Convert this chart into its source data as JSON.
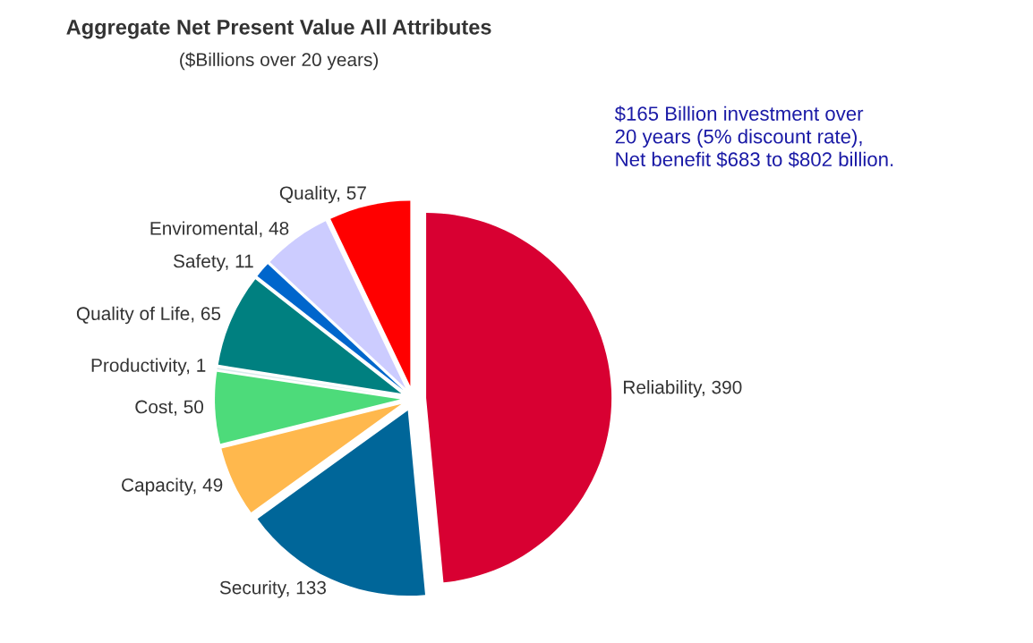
{
  "chart_data": {
    "type": "pie",
    "title": "Aggregate Net Present Value All Attributes",
    "subtitle": "($Billions over 20 years)",
    "categories": [
      "Reliability, 390",
      "Security, 133",
      "Capacity, 49",
      "Cost, 50",
      "Productivity, 1",
      "Quality of Life, 65",
      "Safety, 11",
      "Enviromental, 48",
      "Quality, 57"
    ],
    "values": [
      390,
      133,
      49,
      50,
      1,
      65,
      11,
      48,
      57
    ],
    "colors": [
      "#d80032",
      "#006699",
      "#ffb84d",
      "#4ddb7a",
      "#d8ecec",
      "#008080",
      "#0066cc",
      "#ccccff",
      "#ff0000"
    ],
    "annotations": [
      "$165 Billion investment over\n20 years (5% discount rate),\nNet benefit $683 to $802 billion."
    ]
  }
}
